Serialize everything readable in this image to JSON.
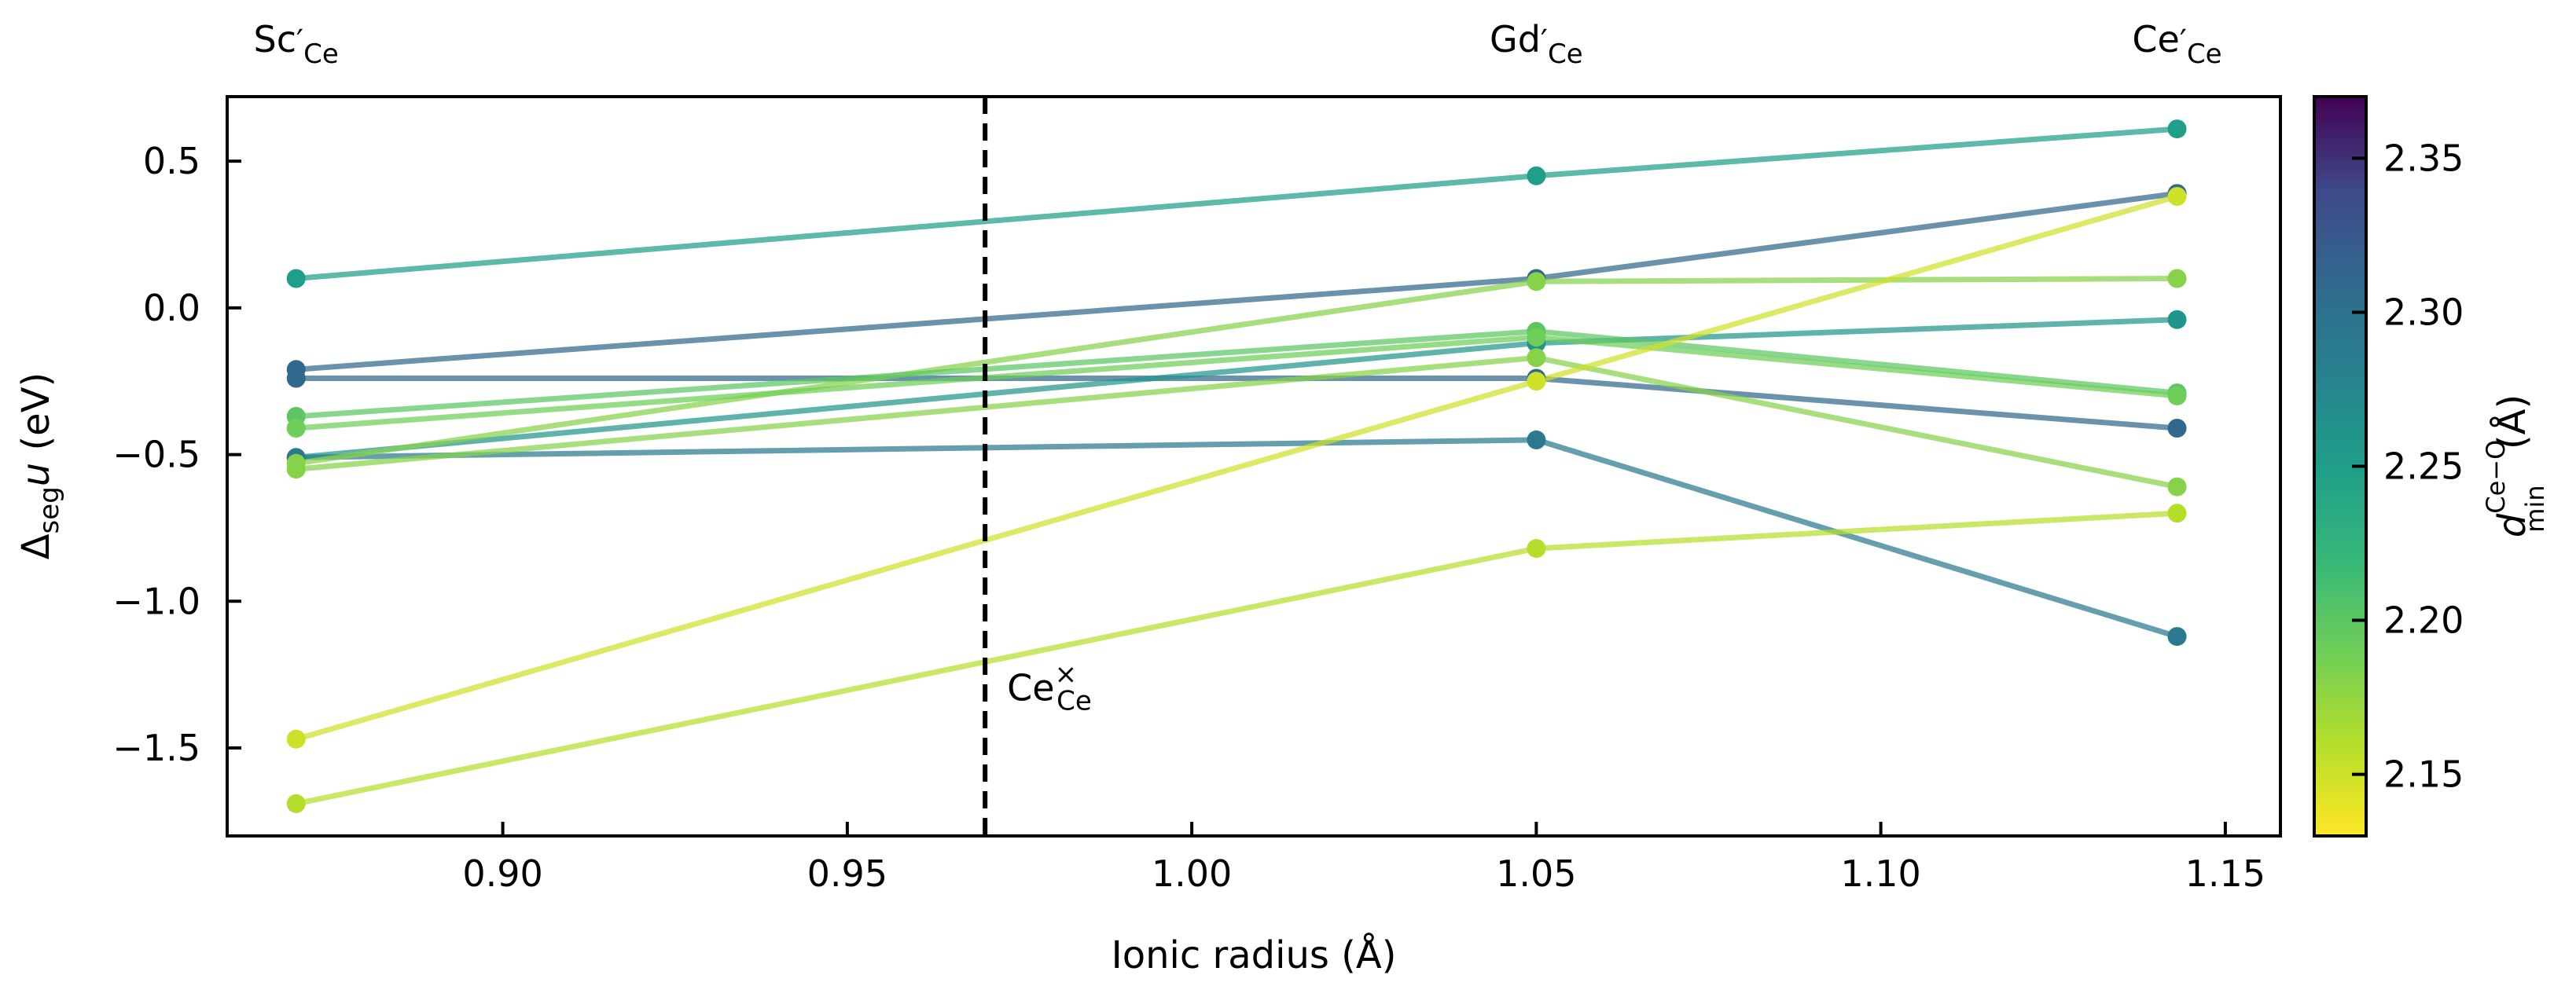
{
  "chart_data": {
    "type": "line",
    "xlabel": "Ionic radius (Å)",
    "ylabel": {
      "prefix": "Δ",
      "sub": "seg",
      "var": "u",
      "suffix": " (eV)"
    },
    "xlim": [
      0.86,
      1.158
    ],
    "ylim": [
      -1.8,
      0.72
    ],
    "xticks": [
      0.9,
      0.95,
      1.0,
      1.05,
      1.1,
      1.15
    ],
    "xtick_labels": [
      "0.90",
      "0.95",
      "1.00",
      "1.05",
      "1.10",
      "1.15"
    ],
    "yticks": [
      0.5,
      0.0,
      -0.5,
      -1.0,
      -1.5
    ],
    "ytick_labels": [
      "0.5",
      "0.0",
      "−0.5",
      "−1.0",
      "−1.5"
    ],
    "top_labels": [
      {
        "x": 0.87,
        "base": "Sc",
        "sup": "′",
        "sub": "Ce"
      },
      {
        "x": 1.05,
        "base": "Gd",
        "sup": "′",
        "sub": "Ce"
      },
      {
        "x": 1.143,
        "base": "Ce",
        "sup": "′",
        "sub": "Ce"
      }
    ],
    "vline": {
      "x": 0.97,
      "style": "dashed",
      "label": {
        "base": "Ce",
        "sup": "×",
        "sub": "Ce"
      }
    },
    "x": [
      0.87,
      1.05,
      1.143
    ],
    "series": [
      {
        "values": [
          0.1,
          0.45,
          0.61
        ],
        "dmin": 2.25
      },
      {
        "values": [
          -0.21,
          0.1,
          0.39
        ],
        "dmin": 2.31
      },
      {
        "values": [
          -0.24,
          -0.24,
          -0.41
        ],
        "dmin": 2.31
      },
      {
        "values": [
          -0.51,
          -0.12,
          -0.04
        ],
        "dmin": 2.26
      },
      {
        "values": [
          -0.51,
          -0.45,
          -1.12
        ],
        "dmin": 2.29
      },
      {
        "values": [
          -0.53,
          0.09,
          0.1
        ],
        "dmin": 2.18
      },
      {
        "values": [
          -0.37,
          -0.08,
          -0.29
        ],
        "dmin": 2.2
      },
      {
        "values": [
          -0.41,
          -0.1,
          -0.3
        ],
        "dmin": 2.19
      },
      {
        "values": [
          -0.55,
          -0.17,
          -0.61
        ],
        "dmin": 2.18
      },
      {
        "values": [
          -1.47,
          -0.25,
          0.38
        ],
        "dmin": 2.15
      },
      {
        "values": [
          -1.69,
          -0.82,
          -0.7
        ],
        "dmin": 2.16
      }
    ],
    "colorbar": {
      "label": {
        "var": "d",
        "sup": "Ce−O",
        "sub": "min",
        "suffix": " (Å)"
      },
      "range": [
        2.13,
        2.37
      ],
      "ticks": [
        2.15,
        2.2,
        2.25,
        2.3,
        2.35
      ],
      "tick_labels": [
        "2.15",
        "2.20",
        "2.25",
        "2.30",
        "2.35"
      ],
      "colormap": "viridis"
    }
  }
}
